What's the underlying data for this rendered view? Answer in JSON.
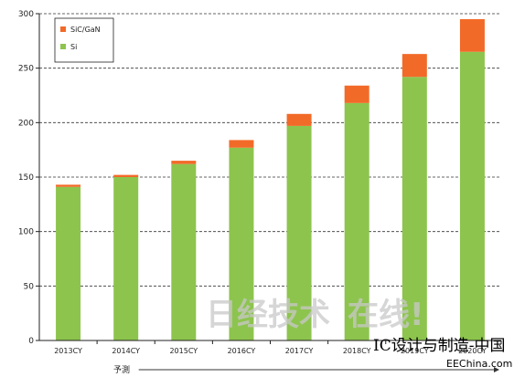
{
  "chart_data": {
    "type": "bar",
    "stacked": true,
    "categories": [
      "2013CY",
      "2014CY",
      "2015CY",
      "2016CY",
      "2017CY",
      "2018CY",
      "2019CY",
      "2020CY"
    ],
    "series": [
      {
        "name": "Si",
        "values": [
          141,
          150,
          162,
          177,
          197,
          218,
          242,
          265
        ],
        "color": "#8dc44e"
      },
      {
        "name": "SiC/GaN",
        "values": [
          2,
          2,
          3,
          7,
          11,
          16,
          21,
          30
        ],
        "color": "#f26a28"
      }
    ],
    "ylim": [
      0,
      300
    ],
    "yticks": [
      0,
      50,
      100,
      150,
      200,
      250,
      300
    ],
    "grid": true,
    "legend_position": "top-left",
    "forecast": {
      "label": "予測",
      "start_category": "2014CY"
    }
  },
  "watermarks": {
    "main": "日经技术",
    "main_suffix": "在线!",
    "secondary": "IC设计与制造-中国",
    "tertiary": "EEChina.com"
  }
}
